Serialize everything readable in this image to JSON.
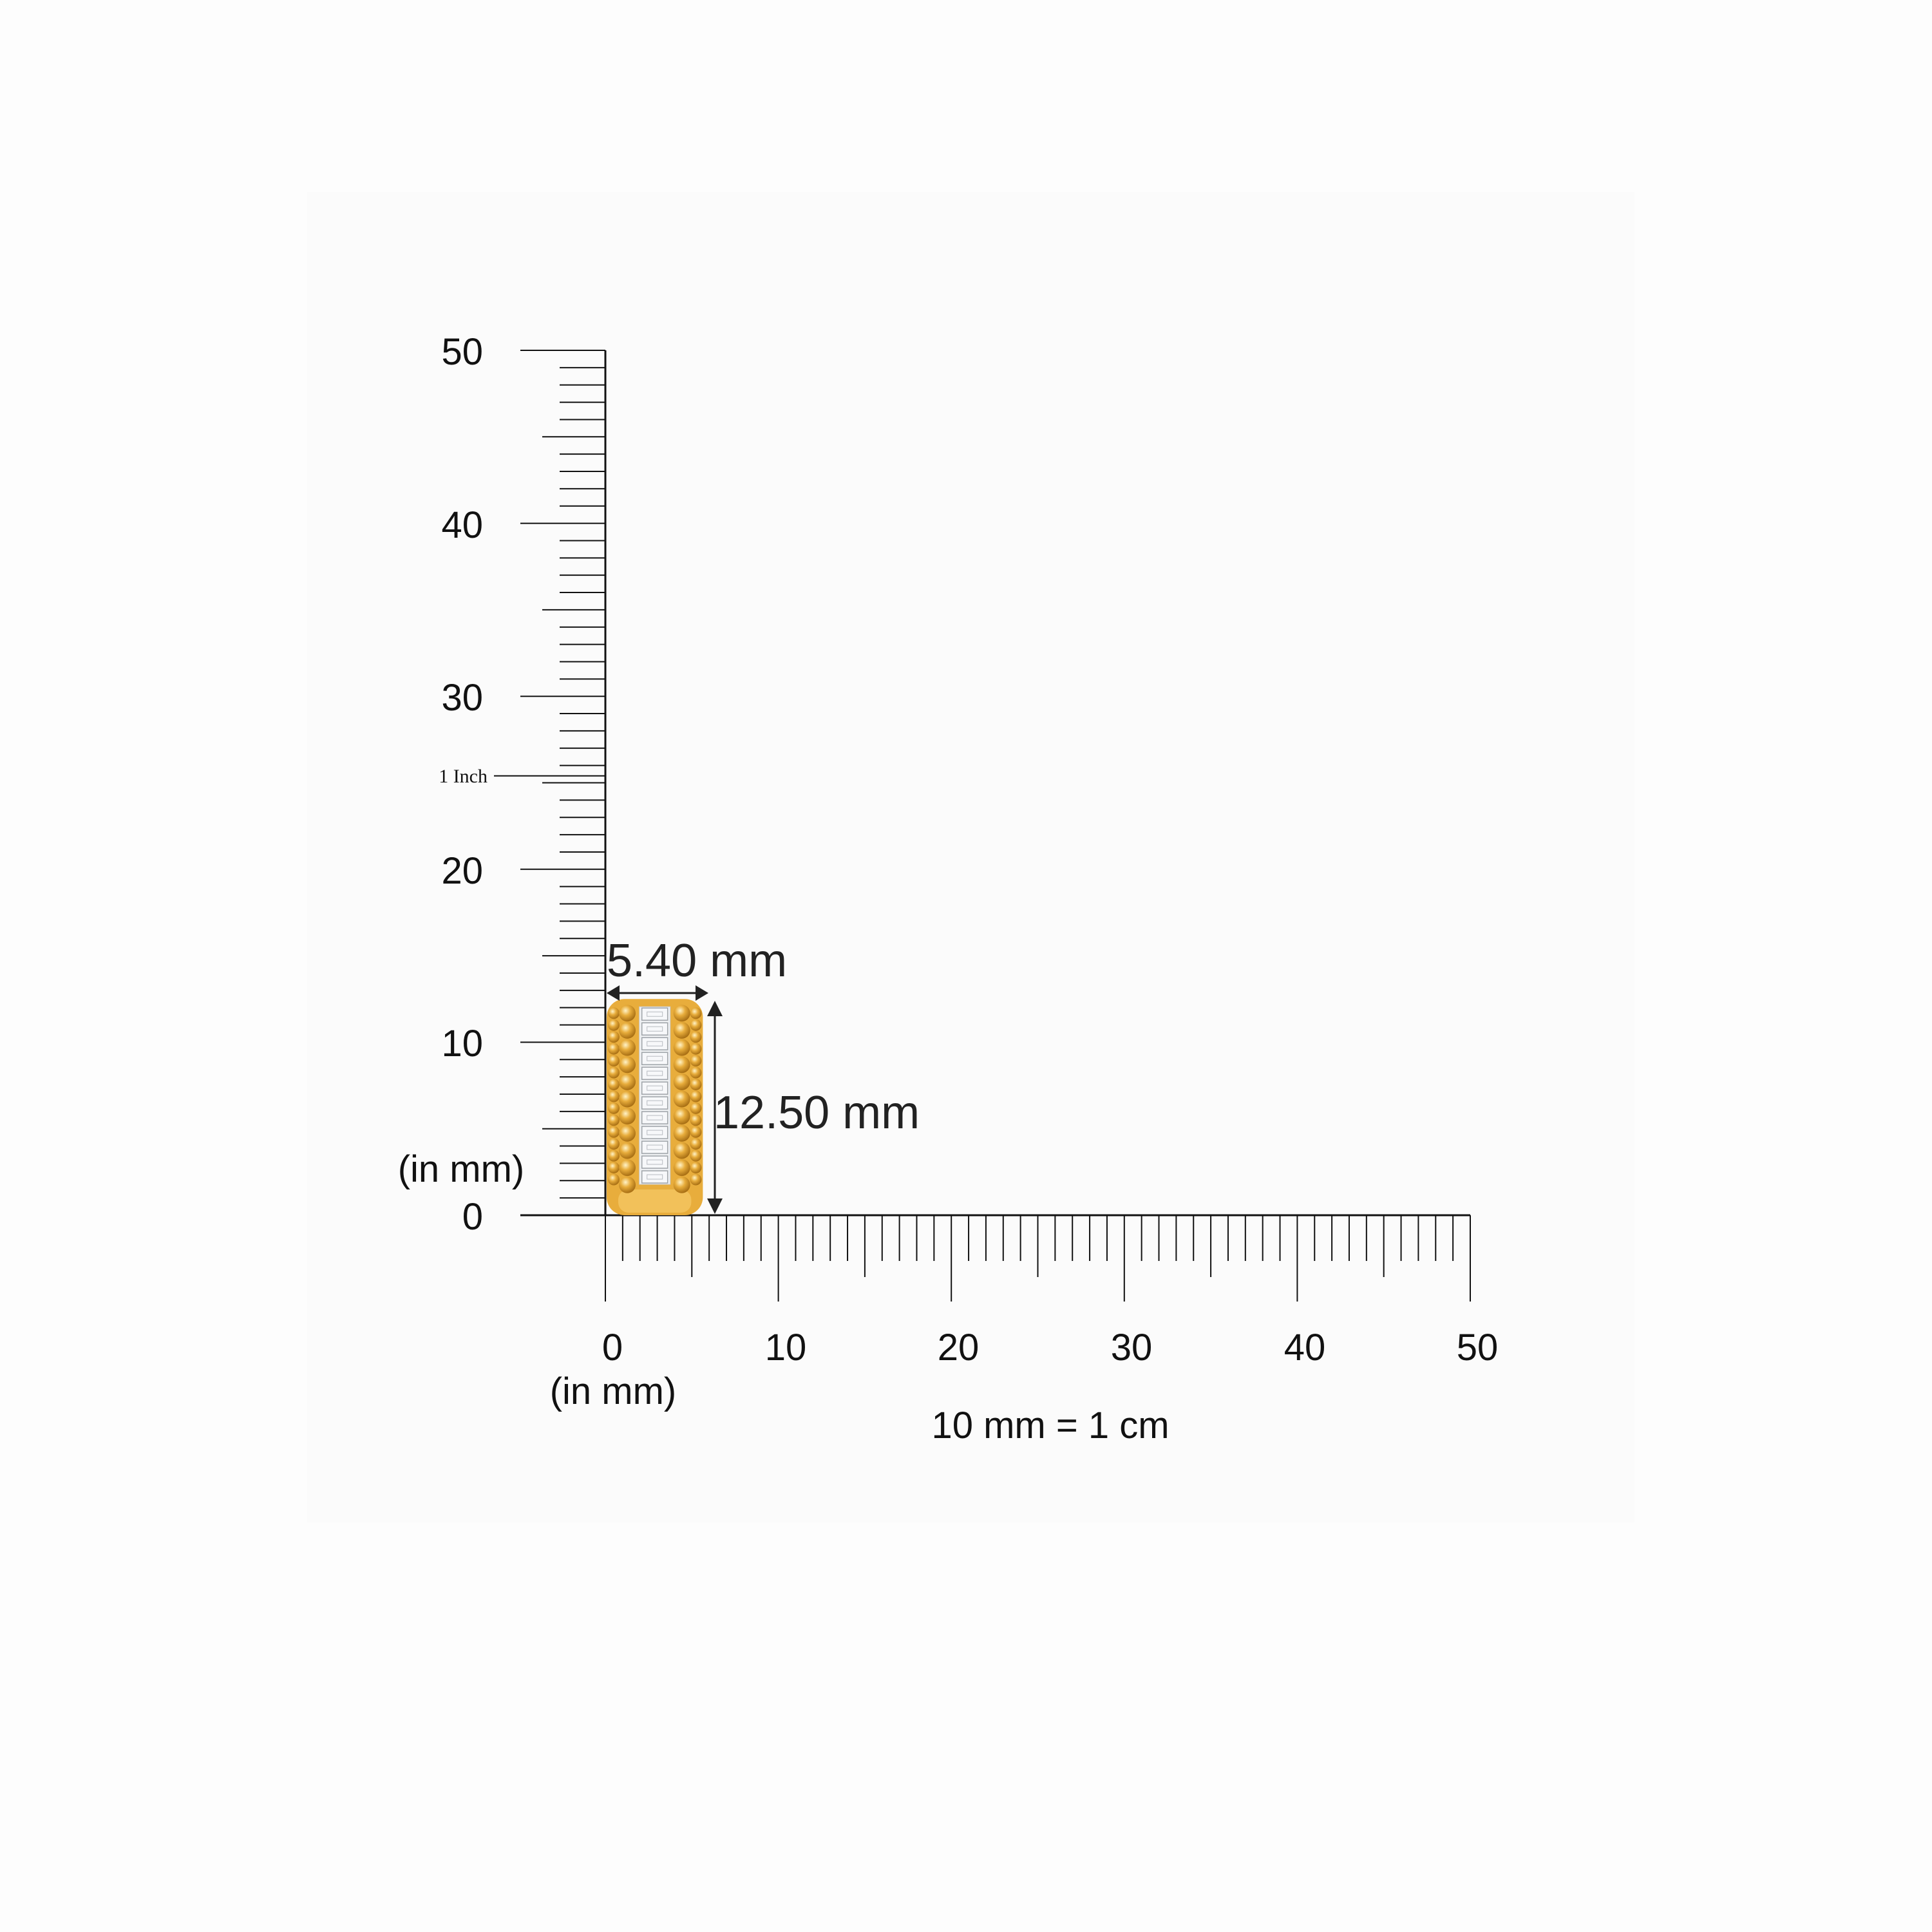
{
  "ruler": {
    "unit_label_vertical": "(in mm)",
    "unit_label_horizontal": "(in mm)",
    "scale_note": "10 mm = 1 cm",
    "range_mm": [
      0,
      50
    ],
    "major_step_mm": 10,
    "mid_step_mm": 5,
    "minor_step_mm": 1,
    "vertical_labels": [
      "0",
      "10",
      "20",
      "30",
      "40",
      "50"
    ],
    "horizontal_labels": [
      "0",
      "10",
      "20",
      "30",
      "40",
      "50"
    ],
    "inch_marker": {
      "label": "1 Inch",
      "value_mm": 25.4
    }
  },
  "product": {
    "width_label": "5.40 mm",
    "height_label": "12.50 mm",
    "width_mm": 5.4,
    "height_mm": 12.5,
    "metal_color": "#e8ad3c",
    "stone_color": "#eef0f2"
  }
}
